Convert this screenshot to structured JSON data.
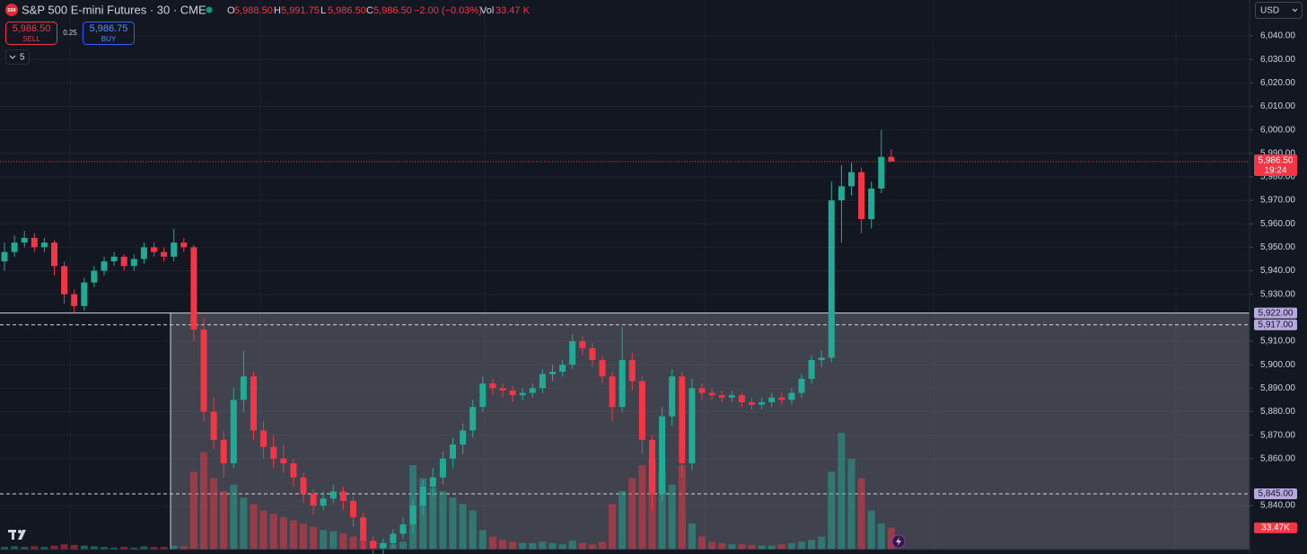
{
  "header": {
    "logo": "500",
    "title": "S&P 500 E-mini Futures · 30 · CME",
    "stats": [
      {
        "label": "O",
        "value": "5,988.50"
      },
      {
        "label": "H",
        "value": "5,991.75"
      },
      {
        "label": "L",
        "value": "5,986.50"
      },
      {
        "label": "C",
        "value": "5,986.50"
      }
    ],
    "change": "−2.00 (−0.03%)",
    "vol_label": "Vol",
    "vol_value": "33.47 K"
  },
  "trade": {
    "sell_price": "5,986.50",
    "sell": "SELL",
    "spread": "0.25",
    "buy_price": "5,986.75",
    "buy": "BUY",
    "indicators": "5"
  },
  "currency": "USD",
  "chart": {
    "type": "candlestick",
    "up_color": "#22ab94",
    "down_color": "#f23645",
    "ylim": [
      5821.3,
      6055.3
    ],
    "yticks": [
      {
        "value": 6040,
        "label": "6,040.00"
      },
      {
        "value": 6030,
        "label": "6,030.00"
      },
      {
        "value": 6020,
        "label": "6,020.00"
      },
      {
        "value": 6010,
        "label": "6,010.00"
      },
      {
        "value": 6000,
        "label": "6,000.00"
      },
      {
        "value": 5990,
        "label": "5,990.00"
      },
      {
        "value": 5980,
        "label": "5,980.00"
      },
      {
        "value": 5970,
        "label": "5,970.00"
      },
      {
        "value": 5960,
        "label": "5,960.00"
      },
      {
        "value": 5950,
        "label": "5,950.00"
      },
      {
        "value": 5940,
        "label": "5,940.00"
      },
      {
        "value": 5930,
        "label": "5,930.00"
      },
      {
        "value": 5910,
        "label": "5,910.00"
      },
      {
        "value": 5900,
        "label": "5,900.00"
      },
      {
        "value": 5890,
        "label": "5,890.00"
      },
      {
        "value": 5880,
        "label": "5,880.00"
      },
      {
        "value": 5870,
        "label": "5,870.00"
      },
      {
        "value": 5860,
        "label": "5,860.00"
      },
      {
        "value": 5840,
        "label": "5,840.00"
      }
    ],
    "last_price": {
      "value": 5986.5,
      "label": "5,986.50",
      "countdown": "19:24"
    },
    "levels": [
      {
        "value": 5922,
        "label": "5,922.00"
      },
      {
        "value": 5917,
        "label": "5,917.00"
      },
      {
        "value": 5845,
        "label": "5,845.00"
      }
    ],
    "volume_tag": "33.47K",
    "candles": [
      [
        5944,
        5952,
        5940,
        5948,
        4
      ],
      [
        5948,
        5955,
        5946,
        5952,
        5
      ],
      [
        5952,
        5957,
        5950,
        5954,
        4
      ],
      [
        5954,
        5956,
        5948,
        5950,
        5
      ],
      [
        5950,
        5954,
        5948,
        5952,
        4
      ],
      [
        5952,
        5953,
        5938,
        5942,
        6
      ],
      [
        5942,
        5944,
        5926,
        5930,
        8
      ],
      [
        5930,
        5932,
        5922,
        5925,
        7
      ],
      [
        5925,
        5937,
        5923,
        5935,
        6
      ],
      [
        5935,
        5942,
        5933,
        5940,
        5
      ],
      [
        5940,
        5946,
        5938,
        5944,
        4
      ],
      [
        5944,
        5948,
        5942,
        5946,
        3
      ],
      [
        5946,
        5947,
        5940,
        5942,
        4
      ],
      [
        5942,
        5947,
        5940,
        5945,
        3
      ],
      [
        5945,
        5952,
        5943,
        5950,
        5
      ],
      [
        5950,
        5952,
        5946,
        5948,
        4
      ],
      [
        5948,
        5950,
        5944,
        5946,
        4
      ],
      [
        5946,
        5958,
        5944,
        5952,
        6
      ],
      [
        5952,
        5954,
        5948,
        5950,
        5
      ],
      [
        5950,
        5951,
        5910,
        5915,
        120
      ],
      [
        5915,
        5920,
        5876,
        5880,
        150
      ],
      [
        5880,
        5886,
        5864,
        5868,
        110
      ],
      [
        5868,
        5872,
        5852,
        5858,
        90
      ],
      [
        5858,
        5890,
        5856,
        5885,
        100
      ],
      [
        5885,
        5906,
        5880,
        5895,
        80
      ],
      [
        5895,
        5897,
        5868,
        5872,
        70
      ],
      [
        5872,
        5876,
        5860,
        5865,
        60
      ],
      [
        5865,
        5870,
        5856,
        5860,
        55
      ],
      [
        5860,
        5866,
        5854,
        5858,
        50
      ],
      [
        5858,
        5860,
        5848,
        5852,
        45
      ],
      [
        5852,
        5854,
        5841,
        5845,
        40
      ],
      [
        5845,
        5847,
        5836,
        5840,
        35
      ],
      [
        5840,
        5846,
        5838,
        5843,
        30
      ],
      [
        5843,
        5849,
        5841,
        5846,
        28
      ],
      [
        5846,
        5848,
        5838,
        5842,
        25
      ],
      [
        5842,
        5844,
        5831,
        5835,
        20
      ],
      [
        5835,
        5837,
        5821,
        5825,
        15
      ],
      [
        5825,
        5827,
        5818,
        5822,
        12
      ],
      [
        5822,
        5826,
        5819,
        5824,
        10
      ],
      [
        5824,
        5830,
        5822,
        5828,
        8
      ],
      [
        5828,
        5835,
        5826,
        5832,
        12
      ],
      [
        5832,
        5843,
        5828,
        5840,
        130
      ],
      [
        5840,
        5851,
        5836,
        5848,
        110
      ],
      [
        5848,
        5856,
        5844,
        5852,
        95
      ],
      [
        5852,
        5863,
        5849,
        5860,
        90
      ],
      [
        5860,
        5869,
        5856,
        5866,
        80
      ],
      [
        5866,
        5875,
        5862,
        5872,
        70
      ],
      [
        5872,
        5885,
        5869,
        5882,
        60
      ],
      [
        5882,
        5895,
        5880,
        5892,
        30
      ],
      [
        5892,
        5894,
        5887,
        5890,
        20
      ],
      [
        5890,
        5892,
        5886,
        5889,
        15
      ],
      [
        5889,
        5891,
        5884,
        5887,
        12
      ],
      [
        5887,
        5890,
        5885,
        5888,
        10
      ],
      [
        5888,
        5892,
        5886,
        5890,
        10
      ],
      [
        5890,
        5898,
        5888,
        5896,
        12
      ],
      [
        5896,
        5900,
        5893,
        5897,
        10
      ],
      [
        5897,
        5902,
        5895,
        5900,
        8
      ],
      [
        5900,
        5913,
        5898,
        5910,
        14
      ],
      [
        5910,
        5912,
        5904,
        5907,
        10
      ],
      [
        5907,
        5909,
        5899,
        5902,
        8
      ],
      [
        5902,
        5904,
        5892,
        5895,
        12
      ],
      [
        5895,
        5897,
        5876,
        5882,
        70
      ],
      [
        5882,
        5916,
        5880,
        5902,
        90
      ],
      [
        5902,
        5905,
        5889,
        5893,
        110
      ],
      [
        5893,
        5895,
        5862,
        5868,
        130
      ],
      [
        5868,
        5870,
        5838,
        5845,
        140
      ],
      [
        5845,
        5882,
        5842,
        5878,
        120
      ],
      [
        5878,
        5898,
        5874,
        5895,
        100
      ],
      [
        5895,
        5897,
        5852,
        5858,
        130
      ],
      [
        5858,
        5894,
        5855,
        5890,
        40
      ],
      [
        5890,
        5892,
        5885,
        5888,
        20
      ],
      [
        5888,
        5890,
        5885,
        5887,
        12
      ],
      [
        5887,
        5889,
        5884,
        5886,
        10
      ],
      [
        5886,
        5889,
        5884,
        5887,
        8
      ],
      [
        5887,
        5888,
        5882,
        5884,
        8
      ],
      [
        5884,
        5886,
        5881,
        5883,
        7
      ],
      [
        5883,
        5886,
        5881,
        5884,
        6
      ],
      [
        5884,
        5888,
        5882,
        5886,
        6
      ],
      [
        5886,
        5888,
        5883,
        5885,
        8
      ],
      [
        5885,
        5890,
        5883,
        5888,
        10
      ],
      [
        5888,
        5896,
        5886,
        5894,
        12
      ],
      [
        5894,
        5904,
        5892,
        5902,
        15
      ],
      [
        5902,
        5906,
        5899,
        5903,
        20
      ],
      [
        5903,
        5978,
        5901,
        5970,
        120
      ],
      [
        5970,
        5985,
        5952,
        5976,
        180
      ],
      [
        5976,
        5986,
        5972,
        5982,
        140
      ],
      [
        5982,
        5984,
        5956,
        5962,
        110
      ],
      [
        5962,
        5978,
        5958,
        5975,
        60
      ],
      [
        5975,
        6000,
        5973,
        5988.5,
        40
      ],
      [
        5988.5,
        5991.75,
        5986.5,
        5986.5,
        33.47
      ]
    ]
  }
}
